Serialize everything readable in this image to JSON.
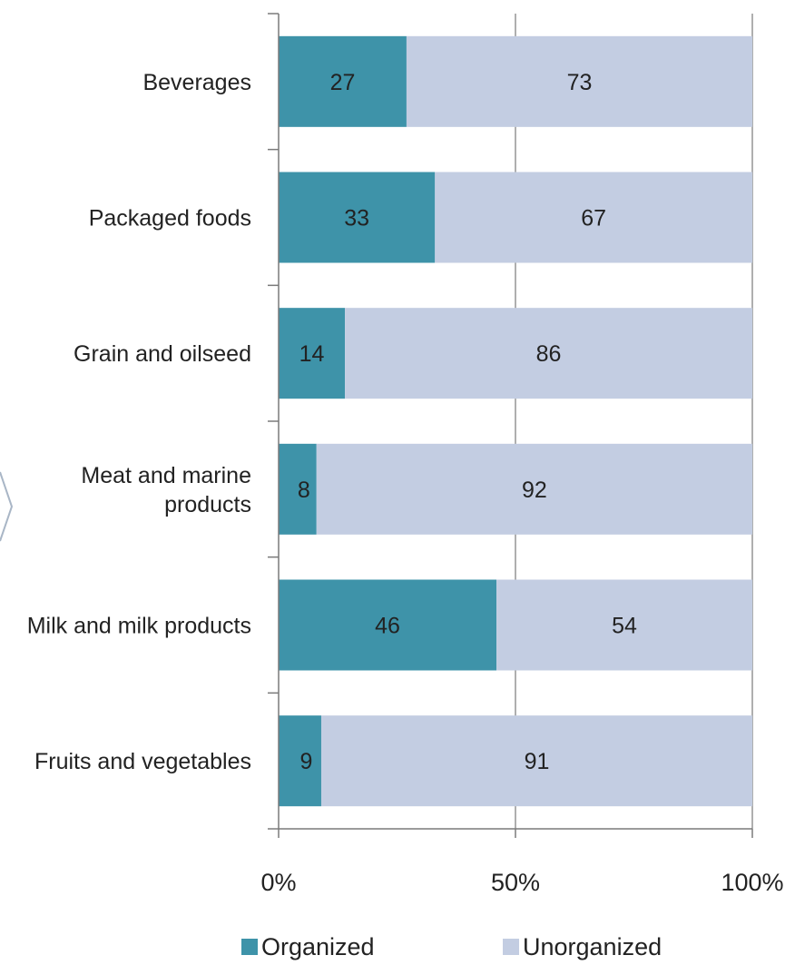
{
  "chart_data": {
    "type": "bar",
    "orientation": "horizontal",
    "stacked": true,
    "categories": [
      [
        "Beverages"
      ],
      [
        "Packaged foods"
      ],
      [
        "Grain and oilseed"
      ],
      [
        "Meat and marine",
        "products"
      ],
      [
        "Milk and milk products"
      ],
      [
        "Fruits and vegetables"
      ]
    ],
    "series": [
      {
        "name": "Organized",
        "color": "#3e93a9",
        "values": [
          27,
          33,
          14,
          8,
          46,
          9
        ]
      },
      {
        "name": "Unorganized",
        "color": "#c3cde2",
        "values": [
          73,
          67,
          86,
          92,
          54,
          91
        ]
      }
    ],
    "x_ticks": [
      "0%",
      "50%",
      "100%"
    ],
    "xlim": [
      0,
      100
    ],
    "grid": {
      "vertical": true,
      "gridline_at": [
        50,
        100
      ]
    },
    "legend": {
      "position": "bottom",
      "items": [
        "Organized",
        "Unorganized"
      ]
    },
    "title": "",
    "xlabel": "",
    "ylabel": ""
  }
}
